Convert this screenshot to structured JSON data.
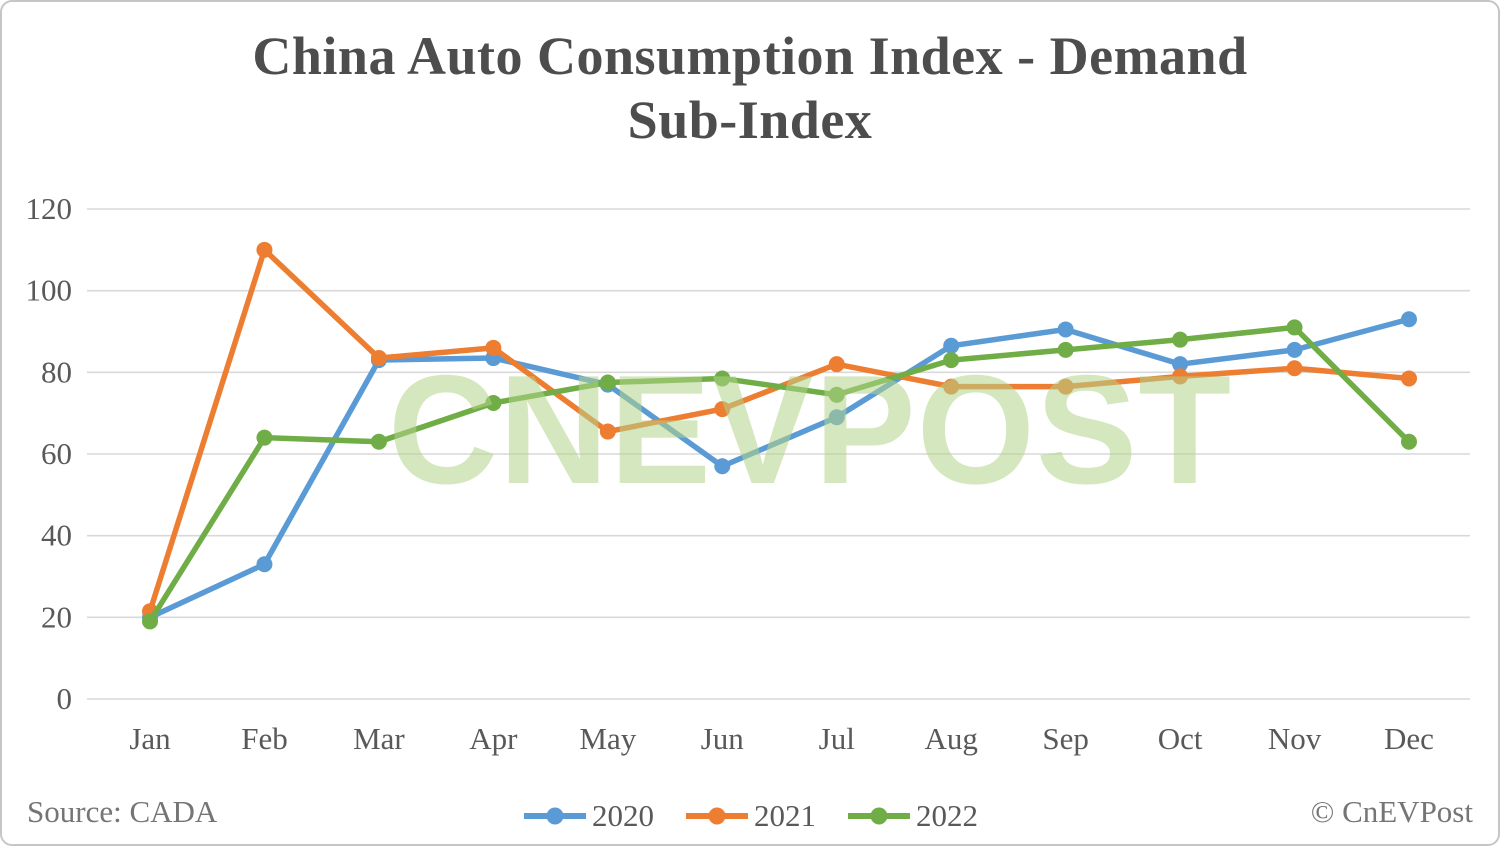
{
  "page": {
    "title_line1": "China Auto Consumption Index - Demand",
    "title_line2": "Sub-Index",
    "source_label": "Source: CADA",
    "copyright_label": "© CnEVPost",
    "watermark": "CNEVPOST"
  },
  "chart_data": {
    "type": "line",
    "title": "China Auto Consumption Index - Demand Sub-Index",
    "categories": [
      "Jan",
      "Feb",
      "Mar",
      "Apr",
      "May",
      "Jun",
      "Jul",
      "Aug",
      "Sep",
      "Oct",
      "Nov",
      "Dec"
    ],
    "series": [
      {
        "name": "2020",
        "color": "#5B9BD5",
        "values": [
          20,
          33,
          83,
          83.5,
          77,
          57,
          69,
          86.5,
          90.5,
          82,
          85.5,
          93
        ]
      },
      {
        "name": "2021",
        "color": "#ED7D31",
        "values": [
          21.5,
          110,
          83.5,
          86,
          65.5,
          71,
          82,
          76.5,
          76.5,
          79,
          81,
          78.5
        ]
      },
      {
        "name": "2022",
        "color": "#70AD47",
        "values": [
          19,
          64,
          63,
          72.5,
          77.5,
          78.5,
          74.5,
          83,
          85.5,
          88,
          91,
          63
        ]
      }
    ],
    "ylim": [
      0,
      120
    ],
    "ytick_step": 20,
    "xlabel": "",
    "ylabel": "",
    "grid": "horizontal",
    "gridline_color": "#D9D9D9",
    "axis_text_color": "#595959",
    "legend_position": "bottom"
  }
}
